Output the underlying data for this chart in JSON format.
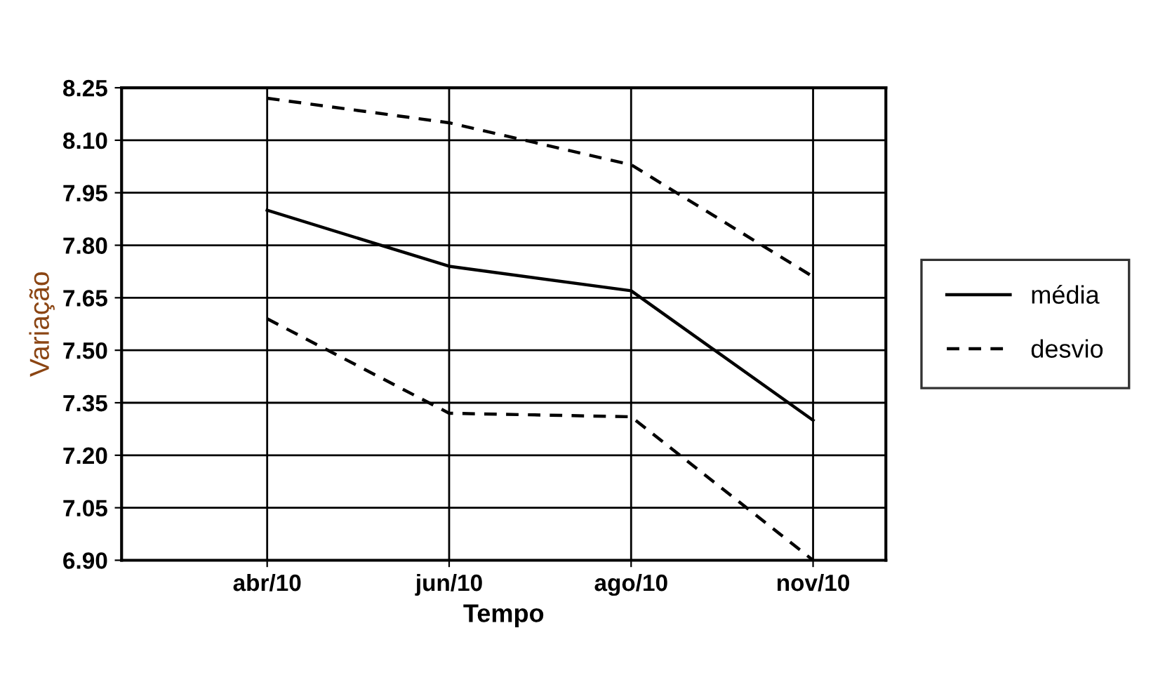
{
  "chart_data": {
    "type": "line",
    "xlabel": "Tempo",
    "ylabel": "Variação",
    "categories": [
      "abr/10",
      "jun/10",
      "ago/10",
      "nov/10"
    ],
    "series": [
      {
        "name": "média",
        "color": "#000000",
        "line_style": "solid",
        "values": [
          7.9,
          7.74,
          7.67,
          7.3
        ]
      },
      {
        "name": "desvio",
        "color": "#000000",
        "line_style": "dashed",
        "values": [
          8.22,
          8.15,
          8.03,
          7.71
        ]
      },
      {
        "color": "#000000",
        "line_style": "dashed",
        "values": [
          7.59,
          7.32,
          7.31,
          6.9
        ]
      }
    ],
    "ylim": [
      6.9,
      8.25
    ],
    "yticks": [
      {
        "value": 6.9,
        "label": "6.90"
      },
      {
        "value": 7.05,
        "label": "7.05"
      },
      {
        "value": 7.2,
        "label": "7.20"
      },
      {
        "value": 7.35,
        "label": "7.35"
      },
      {
        "value": 7.5,
        "label": "7.50"
      },
      {
        "value": 7.65,
        "label": "7.65"
      },
      {
        "value": 7.8,
        "label": "7.80"
      },
      {
        "value": 7.95,
        "label": "7.95"
      },
      {
        "value": 8.1,
        "label": "8.10"
      },
      {
        "value": 8.25,
        "label": "8.25"
      }
    ],
    "grid": true,
    "legend": "right",
    "marker": "none"
  }
}
